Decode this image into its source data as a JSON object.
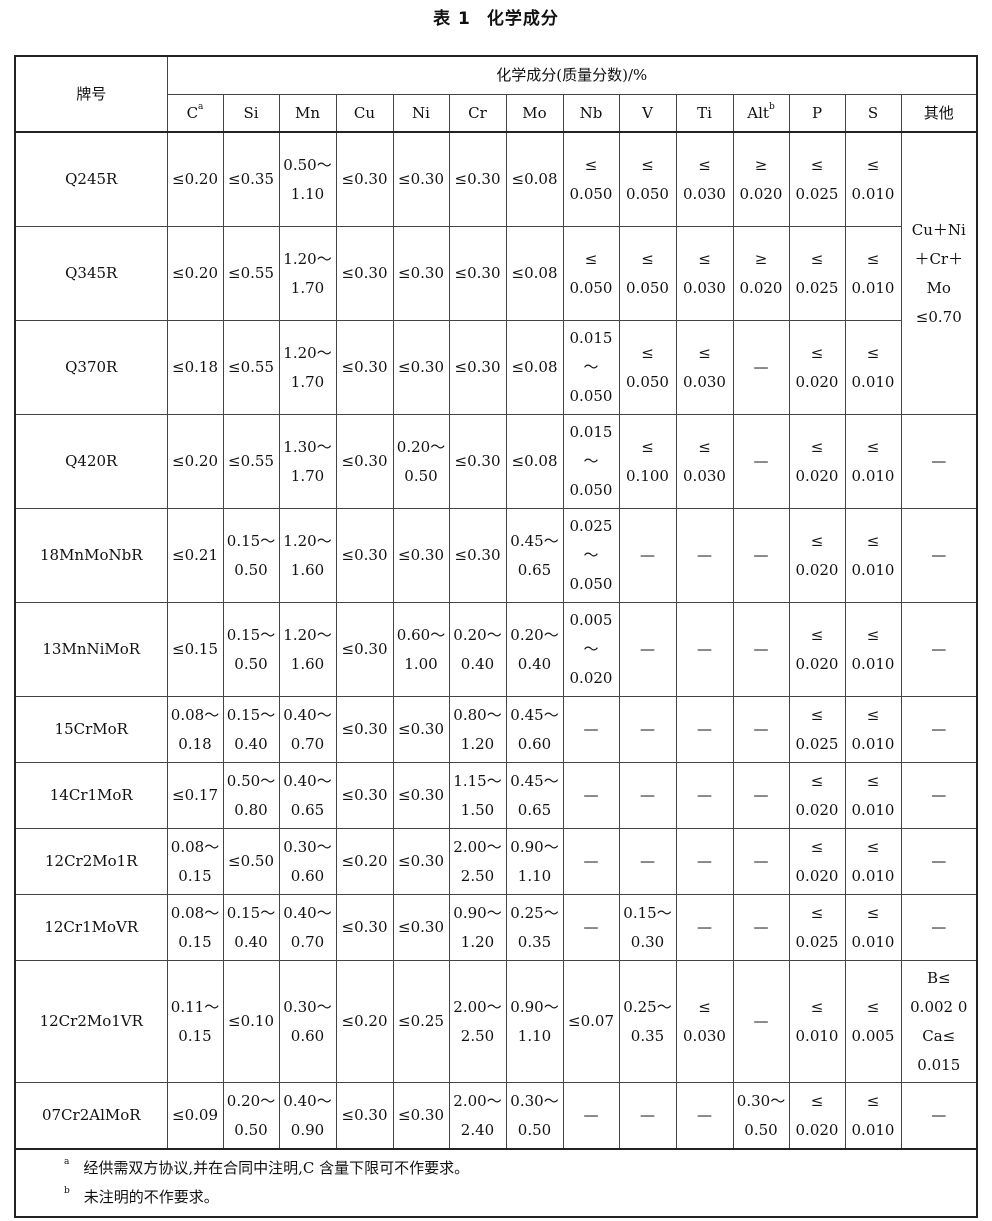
{
  "title": {
    "label": "表 1",
    "text": "化学成分"
  },
  "header": {
    "grade": "牌号",
    "group": "化学成分(质量分数)/%",
    "columns": [
      {
        "name": "C",
        "sup": "a"
      },
      {
        "name": "Si"
      },
      {
        "name": "Mn"
      },
      {
        "name": "Cu"
      },
      {
        "name": "Ni"
      },
      {
        "name": "Cr"
      },
      {
        "name": "Mo"
      },
      {
        "name": "Nb"
      },
      {
        "name": "V"
      },
      {
        "name": "Ti"
      },
      {
        "name": "Alt",
        "sup": "b"
      },
      {
        "name": "P"
      },
      {
        "name": "S"
      },
      {
        "name": "其他"
      }
    ]
  },
  "rows": [
    {
      "grade": "Q245R",
      "cells": [
        "≤0.20",
        "≤0.35",
        "0.50～\n1.10",
        "≤0.30",
        "≤0.30",
        "≤0.30",
        "≤0.08",
        "≤\n0.050",
        "≤\n0.050",
        "≤\n0.030",
        "≥\n0.020",
        "≤\n0.025",
        "≤\n0.010"
      ],
      "other": "Cu＋Ni\n＋Cr＋\nMo\n≤0.70",
      "other_rowspan": 3,
      "size": "tall"
    },
    {
      "grade": "Q345R",
      "cells": [
        "≤0.20",
        "≤0.55",
        "1.20～\n1.70",
        "≤0.30",
        "≤0.30",
        "≤0.30",
        "≤0.08",
        "≤\n0.050",
        "≤\n0.050",
        "≤\n0.030",
        "≥\n0.020",
        "≤\n0.025",
        "≤\n0.010"
      ],
      "size": "tall"
    },
    {
      "grade": "Q370R",
      "cells": [
        "≤0.18",
        "≤0.55",
        "1.20～\n1.70",
        "≤0.30",
        "≤0.30",
        "≤0.30",
        "≤0.08",
        "0.015\n～\n0.050",
        "≤\n0.050",
        "≤\n0.030",
        "—",
        "≤\n0.020",
        "≤\n0.010"
      ],
      "size": "tall"
    },
    {
      "grade": "Q420R",
      "cells": [
        "≤0.20",
        "≤0.55",
        "1.30～\n1.70",
        "≤0.30",
        "0.20～\n0.50",
        "≤0.30",
        "≤0.08",
        "0.015\n～\n0.050",
        "≤\n0.100",
        "≤\n0.030",
        "—",
        "≤\n0.020",
        "≤\n0.010"
      ],
      "other": "—",
      "size": "tall"
    },
    {
      "grade": "18MnMoNbR",
      "cells": [
        "≤0.21",
        "0.15～\n0.50",
        "1.20～\n1.60",
        "≤0.30",
        "≤0.30",
        "≤0.30",
        "0.45～\n0.65",
        "0.025\n～\n0.050",
        "—",
        "—",
        "—",
        "≤\n0.020",
        "≤\n0.010"
      ],
      "other": "—",
      "size": "tall"
    },
    {
      "grade": "13MnNiMoR",
      "cells": [
        "≤0.15",
        "0.15～\n0.50",
        "1.20～\n1.60",
        "≤0.30",
        "0.60～\n1.00",
        "0.20～\n0.40",
        "0.20～\n0.40",
        "0.005\n～\n0.020",
        "—",
        "—",
        "—",
        "≤\n0.020",
        "≤\n0.010"
      ],
      "other": "—",
      "size": "tall"
    },
    {
      "grade": "15CrMoR",
      "cells": [
        "0.08～\n0.18",
        "0.15～\n0.40",
        "0.40～\n0.70",
        "≤0.30",
        "≤0.30",
        "0.80～\n1.20",
        "0.45～\n0.60",
        "—",
        "—",
        "—",
        "—",
        "≤\n0.025",
        "≤\n0.010"
      ],
      "other": "—",
      "size": "mid"
    },
    {
      "grade": "14Cr1MoR",
      "cells": [
        "≤0.17",
        "0.50～\n0.80",
        "0.40～\n0.65",
        "≤0.30",
        "≤0.30",
        "1.15～\n1.50",
        "0.45～\n0.65",
        "—",
        "—",
        "—",
        "—",
        "≤\n0.020",
        "≤\n0.010"
      ],
      "other": "—",
      "size": "mid"
    },
    {
      "grade": "12Cr2Mo1R",
      "cells": [
        "0.08～\n0.15",
        "≤0.50",
        "0.30～\n0.60",
        "≤0.20",
        "≤0.30",
        "2.00～\n2.50",
        "0.90～\n1.10",
        "—",
        "—",
        "—",
        "—",
        "≤\n0.020",
        "≤\n0.010"
      ],
      "other": "—",
      "size": "mid"
    },
    {
      "grade": "12Cr1MoVR",
      "cells": [
        "0.08～\n0.15",
        "0.15～\n0.40",
        "0.40～\n0.70",
        "≤0.30",
        "≤0.30",
        "0.90～\n1.20",
        "0.25～\n0.35",
        "—",
        "0.15～\n0.30",
        "—",
        "—",
        "≤\n0.025",
        "≤\n0.010"
      ],
      "other": "—",
      "size": "mid"
    },
    {
      "grade": "12Cr2Mo1VR",
      "cells": [
        "0.11～\n0.15",
        "≤0.10",
        "0.30～\n0.60",
        "≤0.20",
        "≤0.25",
        "2.00～\n2.50",
        "0.90～\n1.10",
        "≤0.07",
        "0.25～\n0.35",
        "≤\n0.030",
        "—",
        "≤\n0.010",
        "≤\n0.005"
      ],
      "other": "B≤\n0.002 0\nCa≤\n0.015",
      "size": "big"
    },
    {
      "grade": "07Cr2AlMoR",
      "cells": [
        "≤0.09",
        "0.20～\n0.50",
        "0.40～\n0.90",
        "≤0.30",
        "≤0.30",
        "2.00～\n2.40",
        "0.30～\n0.50",
        "—",
        "—",
        "—",
        "0.30～\n0.50",
        "≤\n0.020",
        "≤\n0.010"
      ],
      "other": "—",
      "size": "mid"
    }
  ],
  "footnotes": [
    {
      "mark": "a",
      "text": "经供需双方协议,并在合同中注明,C 含量下限可不作要求。"
    },
    {
      "mark": "b",
      "text": "未注明的不作要求。"
    }
  ]
}
